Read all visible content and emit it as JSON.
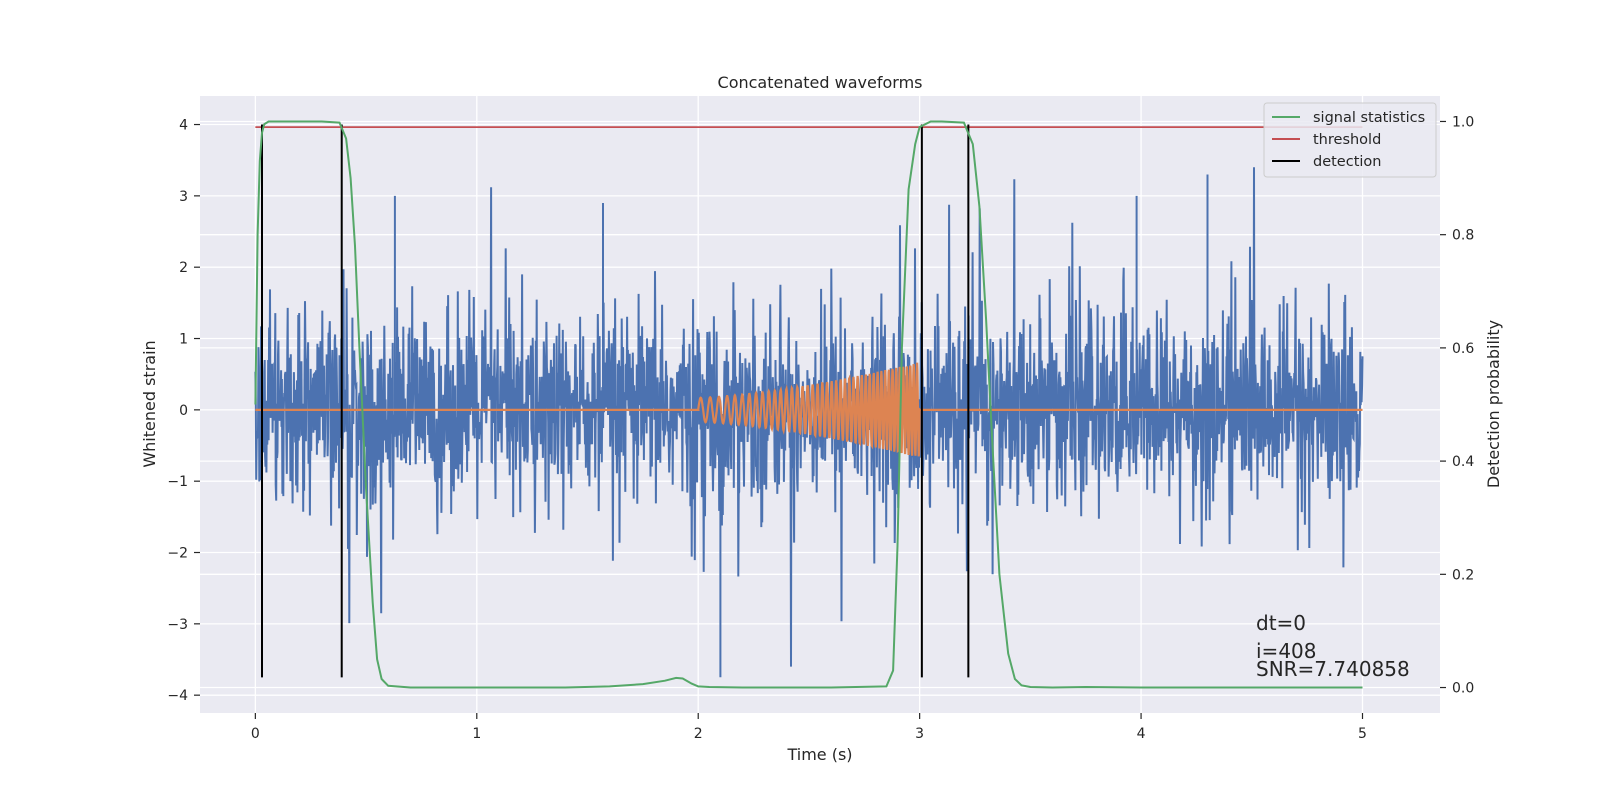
{
  "chart_data": {
    "type": "line",
    "title": "Concatenated waveforms",
    "xlabel": "Time (s)",
    "ylabel": "Whitened strain",
    "ylabel_right": "Detection probability",
    "xlim": [
      -0.25,
      5.35
    ],
    "ylim": [
      -4.25,
      4.4
    ],
    "ylim_right": [
      -0.045,
      1.045
    ],
    "xticks": [
      0,
      1,
      2,
      3,
      4,
      5
    ],
    "xtick_labels": [
      "0",
      "1",
      "2",
      "3",
      "4",
      "5"
    ],
    "yticks": [
      -4,
      -3,
      -2,
      -1,
      0,
      1,
      2,
      3,
      4
    ],
    "ytick_labels": [
      "−4",
      "−3",
      "−2",
      "−1",
      "0",
      "1",
      "2",
      "3",
      "4"
    ],
    "yticks_right": [
      0.0,
      0.2,
      0.4,
      0.6,
      0.8,
      1.0
    ],
    "ytick_labels_right": [
      "0.0",
      "0.2",
      "0.4",
      "0.6",
      "0.8",
      "1.0"
    ],
    "grid": true,
    "legend_position": "top-right",
    "colors": {
      "strain": "#4c72b0",
      "template": "#dd8452",
      "signal_statistics": "#55a868",
      "threshold": "#c44e52",
      "detection": "#000000",
      "background": "#eaeaf2",
      "grid": "#ffffff"
    },
    "legend": [
      {
        "key": "signal_statistics",
        "label": "signal statistics"
      },
      {
        "key": "threshold",
        "label": "threshold"
      },
      {
        "key": "detection",
        "label": "detection"
      }
    ],
    "series": [
      {
        "name": "signal statistics",
        "axis": "right",
        "x": [
          0.0,
          0.01,
          0.02,
          0.03,
          0.04,
          0.06,
          0.1,
          0.2,
          0.3,
          0.38,
          0.41,
          0.43,
          0.45,
          0.47,
          0.5,
          0.53,
          0.55,
          0.57,
          0.6,
          0.7,
          0.8,
          1.0,
          1.4,
          1.6,
          1.75,
          1.85,
          1.9,
          1.93,
          1.97,
          2.0,
          2.05,
          2.2,
          2.6,
          2.85,
          2.88,
          2.9,
          2.92,
          2.95,
          2.98,
          3.0,
          3.05,
          3.1,
          3.2,
          3.24,
          3.27,
          3.3,
          3.33,
          3.36,
          3.4,
          3.43,
          3.46,
          3.5,
          3.6,
          3.75,
          4.0,
          4.5,
          5.0
        ],
        "y": [
          0.5,
          0.8,
          0.93,
          0.98,
          0.995,
          1.0,
          1.0,
          1.0,
          1.0,
          0.998,
          0.97,
          0.9,
          0.78,
          0.6,
          0.35,
          0.15,
          0.05,
          0.015,
          0.003,
          0.0,
          0.0,
          0.0,
          0.0,
          0.002,
          0.006,
          0.012,
          0.017,
          0.016,
          0.007,
          0.002,
          0.001,
          0.0,
          0.0,
          0.002,
          0.03,
          0.25,
          0.6,
          0.88,
          0.96,
          0.99,
          1.0,
          1.0,
          0.998,
          0.96,
          0.85,
          0.65,
          0.42,
          0.2,
          0.06,
          0.015,
          0.004,
          0.001,
          0.0,
          0.001,
          0.0,
          0.0,
          0.0
        ]
      },
      {
        "name": "threshold",
        "axis": "right",
        "x": [
          0.0,
          5.0
        ],
        "y": [
          0.99,
          0.99
        ]
      },
      {
        "name": "detection",
        "axis": "left",
        "x_positions": [
          0.03,
          0.39,
          3.01,
          3.22
        ],
        "y_range": [
          -3.75,
          4.0
        ]
      }
    ],
    "strain": {
      "x_start": 0.0,
      "x_end": 5.0,
      "core_band": [
        -0.65,
        0.9
      ],
      "spike_max": [
        3.0,
        -3.75
      ],
      "description_points": 2500
    },
    "template": {
      "start": 2.0,
      "end": 3.0,
      "max_amplitude": 0.67,
      "start_amplitude": 0.17
    },
    "annotations": {
      "dt": "dt=0",
      "i": "i=408",
      "snr": "SNR=7.740858"
    }
  }
}
